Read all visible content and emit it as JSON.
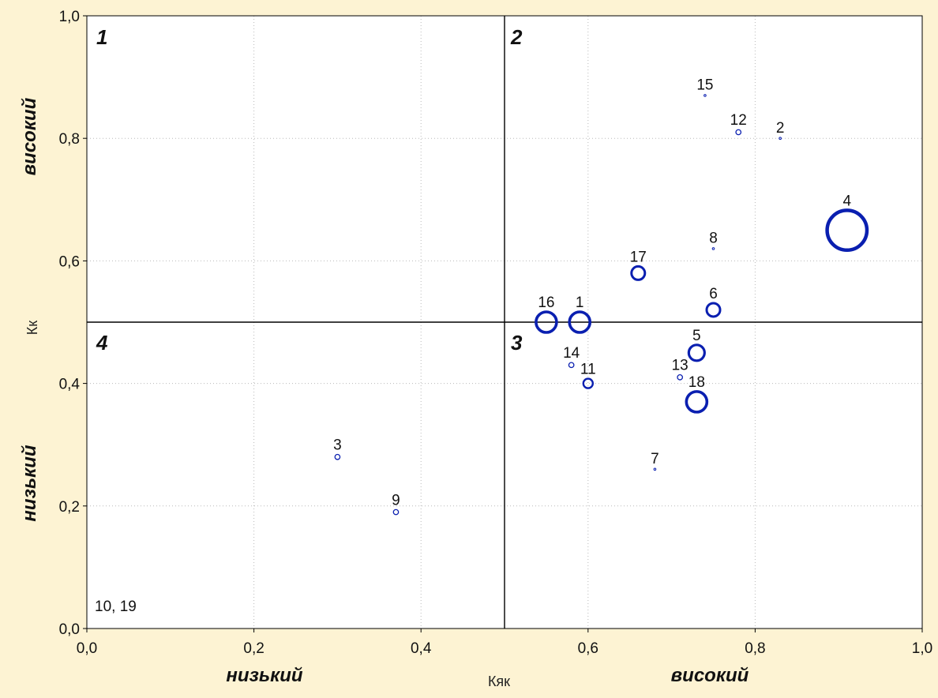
{
  "chart_data": {
    "type": "scatter",
    "title": "",
    "xlabel": "Кяк",
    "ylabel": "Кк",
    "xlim": [
      0,
      1
    ],
    "ylim": [
      0,
      1
    ],
    "x_ticks": [
      "0,0",
      "0,2",
      "0,4",
      "0,6",
      "0,8",
      "1,0"
    ],
    "y_ticks": [
      "0,0",
      "0,2",
      "0,4",
      "0,6",
      "0,8",
      "1,0"
    ],
    "grid": true,
    "divider_x": 0.5,
    "divider_y": 0.5,
    "marker_color": "#0a1fb0",
    "quadrant_labels": [
      "1",
      "2",
      "3",
      "4"
    ],
    "x_qualitative": {
      "low": "низький",
      "high": "високий"
    },
    "y_qualitative": {
      "low": "низький",
      "high": "високий"
    },
    "points": [
      {
        "label": "1",
        "x": 0.59,
        "y": 0.5,
        "size": 3
      },
      {
        "label": "2",
        "x": 0.83,
        "y": 0.8,
        "size": 0
      },
      {
        "label": "3",
        "x": 0.3,
        "y": 0.28,
        "size": 1
      },
      {
        "label": "4",
        "x": 0.91,
        "y": 0.65,
        "size": 6
      },
      {
        "label": "5",
        "x": 0.73,
        "y": 0.45,
        "size": 2.5
      },
      {
        "label": "6",
        "x": 0.75,
        "y": 0.52,
        "size": 2
      },
      {
        "label": "7",
        "x": 0.68,
        "y": 0.26,
        "size": 0
      },
      {
        "label": "8",
        "x": 0.75,
        "y": 0.62,
        "size": 0
      },
      {
        "label": "9",
        "x": 0.37,
        "y": 0.19,
        "size": 1
      },
      {
        "label": "11",
        "x": 0.6,
        "y": 0.4,
        "size": 1.5
      },
      {
        "label": "12",
        "x": 0.78,
        "y": 0.81,
        "size": 1
      },
      {
        "label": "13",
        "x": 0.71,
        "y": 0.41,
        "size": 1
      },
      {
        "label": "14",
        "x": 0.58,
        "y": 0.43,
        "size": 1
      },
      {
        "label": "15",
        "x": 0.74,
        "y": 0.87,
        "size": 0
      },
      {
        "label": "16",
        "x": 0.55,
        "y": 0.5,
        "size": 3
      },
      {
        "label": "17",
        "x": 0.66,
        "y": 0.58,
        "size": 2
      },
      {
        "label": "18",
        "x": 0.73,
        "y": 0.37,
        "size": 3
      },
      {
        "label": "10, 19",
        "x": 0.0,
        "y": 0.0,
        "size": 0
      }
    ]
  }
}
